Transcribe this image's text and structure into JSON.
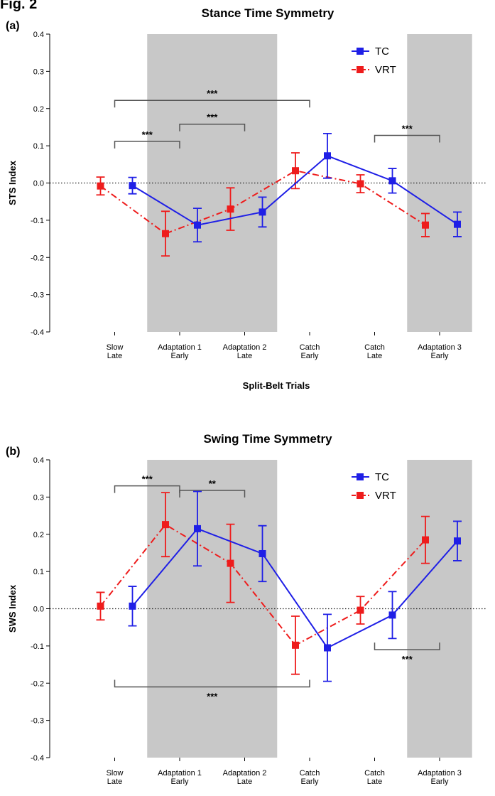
{
  "figure_label": "Fig. 2",
  "chart_data": [
    {
      "type": "line",
      "panel": "(a)",
      "title": "Stance Time Symmetry",
      "xlabel": "Split-Belt Trials",
      "ylabel": "STS Index",
      "ylim": [
        -0.4,
        0.4
      ],
      "yticks": [
        "0.4",
        "0.3",
        "0.2",
        "0.1",
        "0.0",
        "-0.1",
        "-0.2",
        "-0.3",
        "-0.4"
      ],
      "categories": [
        [
          "Slow",
          "Late"
        ],
        [
          "Adaptation 1",
          "Early"
        ],
        [
          "Adaptation 2",
          "Late"
        ],
        [
          "Catch",
          "Early"
        ],
        [
          "Catch",
          "Late"
        ],
        [
          "Adaptation 3",
          "Early"
        ]
      ],
      "shaded_ranges": [
        [
          0.5,
          2.5
        ],
        [
          4.5,
          5.5
        ]
      ],
      "reference_line": 0,
      "legend_position": "top-right",
      "series": [
        {
          "name": "TC",
          "color": "#1f1fe6",
          "style": "solid",
          "values": [
            -0.007,
            -0.113,
            -0.078,
            0.073,
            0.006,
            -0.111
          ],
          "errors": [
            0.022,
            0.045,
            0.04,
            0.06,
            0.033,
            0.033
          ]
        },
        {
          "name": "VRT",
          "color": "#ee1c1c",
          "style": "dashdot",
          "values": [
            -0.008,
            -0.136,
            -0.07,
            0.033,
            -0.002,
            -0.113
          ],
          "errors": [
            0.024,
            0.06,
            0.057,
            0.048,
            0.024,
            0.031
          ]
        }
      ],
      "significance": [
        {
          "from": 0,
          "to": 3,
          "label": "***",
          "y": 0.222,
          "side": "above"
        },
        {
          "from": 1,
          "to": 2,
          "label": "***",
          "y": 0.158,
          "side": "above"
        },
        {
          "from": 0,
          "to": 1,
          "label": "***",
          "y": 0.112,
          "side": "above"
        },
        {
          "from": 4,
          "to": 5,
          "label": "***",
          "y": 0.128,
          "side": "above"
        }
      ]
    },
    {
      "type": "line",
      "panel": "(b)",
      "title": "Swing Time Symmetry",
      "xlabel": "Split-Belt Trials",
      "ylabel": "SWS Index",
      "ylim": [
        -0.4,
        0.4
      ],
      "yticks": [
        "0.4",
        "0.3",
        "0.2",
        "0.1",
        "0.0",
        "-0.1",
        "-0.2",
        "-0.3",
        "-0.4"
      ],
      "categories": [
        [
          "Slow",
          "Late"
        ],
        [
          "Adaptation 1",
          "Early"
        ],
        [
          "Adaptation 2",
          "Late"
        ],
        [
          "Catch",
          "Early"
        ],
        [
          "Catch",
          "Late"
        ],
        [
          "Adaptation 3",
          "Early"
        ]
      ],
      "shaded_ranges": [
        [
          0.5,
          2.5
        ],
        [
          4.5,
          5.5
        ]
      ],
      "reference_line": 0,
      "legend_position": "top-right",
      "series": [
        {
          "name": "TC",
          "color": "#1f1fe6",
          "style": "solid",
          "values": [
            0.007,
            0.215,
            0.148,
            -0.105,
            -0.017,
            0.182
          ],
          "errors": [
            0.053,
            0.1,
            0.075,
            0.09,
            0.063,
            0.053
          ]
        },
        {
          "name": "VRT",
          "color": "#ee1c1c",
          "style": "dashdot",
          "values": [
            0.007,
            0.226,
            0.122,
            -0.098,
            -0.004,
            0.185
          ],
          "errors": [
            0.037,
            0.086,
            0.105,
            0.078,
            0.037,
            0.063
          ]
        }
      ],
      "significance": [
        {
          "from": 0,
          "to": 1,
          "label": "***",
          "y": 0.33,
          "side": "above"
        },
        {
          "from": 1,
          "to": 2,
          "label": "**",
          "y": 0.318,
          "side": "above"
        },
        {
          "from": 0,
          "to": 3,
          "label": "***",
          "y": -0.21,
          "side": "below"
        },
        {
          "from": 4,
          "to": 5,
          "label": "***",
          "y": -0.11,
          "side": "below"
        }
      ]
    }
  ]
}
